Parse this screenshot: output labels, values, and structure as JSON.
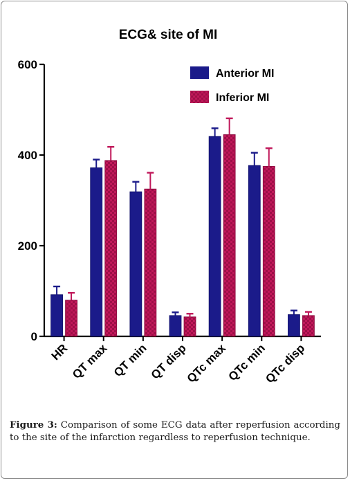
{
  "caption": {
    "label": "Figure 3:",
    "text": "Comparison of some ECG data after reperfusion according to the site of the infarction regardless to reperfusion technique."
  },
  "chart_data": {
    "type": "bar",
    "title": "ECG& site of  MI",
    "xlabel": "",
    "ylabel": "",
    "ylim": [
      0,
      600
    ],
    "yticks": [
      "0",
      "200",
      "400",
      "600"
    ],
    "ytick_values": [
      0,
      200,
      400,
      600
    ],
    "categories": [
      "HR",
      "QT max",
      "QT min",
      "QT disp",
      "QTc max",
      "QTc min",
      "QTc disp"
    ],
    "legend_position": "top-right",
    "series": [
      {
        "name": "Anterior MI",
        "color": "#1b1b8a",
        "pattern": "solid",
        "values": [
          92,
          372,
          319,
          46,
          441,
          377,
          48
        ],
        "error": [
          18,
          18,
          22,
          7,
          18,
          28,
          9
        ]
      },
      {
        "name": "Inferior MI",
        "color": "#c0185a",
        "pattern": "checker",
        "values": [
          80,
          388,
          325,
          43,
          445,
          375,
          46
        ],
        "error": [
          16,
          30,
          36,
          7,
          36,
          40,
          8
        ]
      }
    ]
  }
}
